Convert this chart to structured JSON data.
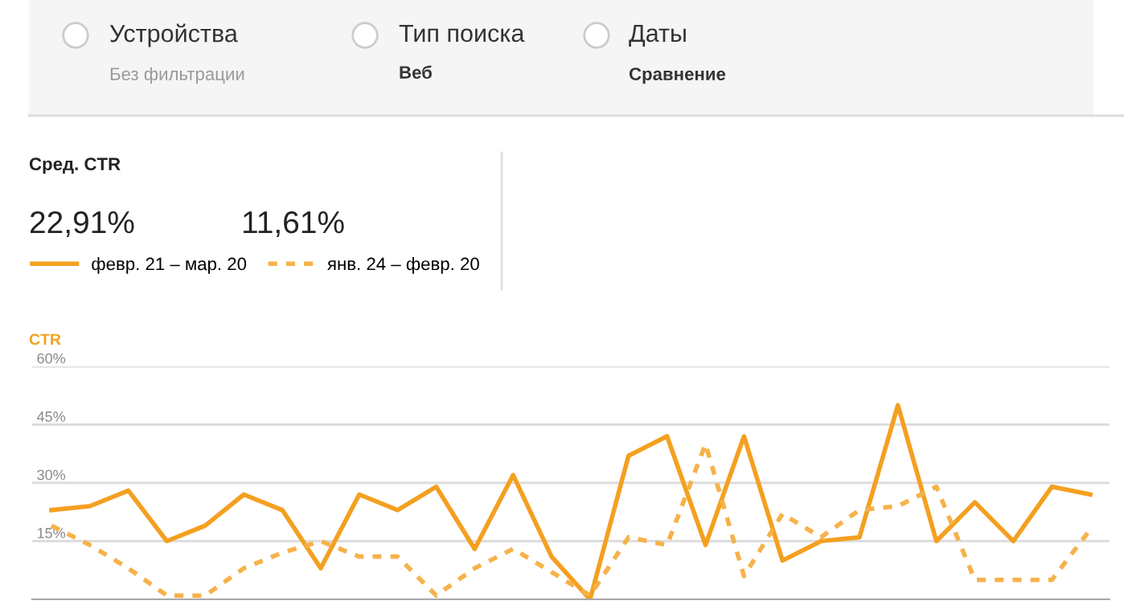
{
  "chart_data": {
    "type": "line",
    "ylabel": "CTR",
    "annotations": [
      "Устройства",
      "Без фильтрации",
      "Тип поиска",
      "Веб",
      "Даты",
      "Сравнение",
      "Сред. CTR",
      "22,91%",
      "11,61%"
    ],
    "categories": [
      null,
      null,
      null,
      null,
      null,
      null,
      null,
      null,
      null,
      null,
      null,
      null,
      null,
      null,
      null,
      null,
      null,
      null,
      null,
      null,
      null,
      null,
      null,
      null,
      null,
      null,
      null,
      null
    ],
    "series": [
      {
        "name": "февр. 21 – мар. 20",
        "color": "#f4a020",
        "line_style": "solid",
        "values": [
          23,
          24,
          28,
          15,
          19,
          27,
          23,
          8,
          27,
          23,
          29,
          13,
          32,
          11,
          0,
          37,
          42,
          14,
          42,
          10,
          15,
          16,
          50,
          15,
          25,
          15,
          29,
          27
        ]
      },
      {
        "name": "янв. 24 – февр. 20",
        "color": "#f6b24a",
        "line_style": "dashed",
        "values": [
          19,
          14,
          8,
          1,
          1,
          8,
          12,
          15,
          11,
          11,
          1,
          8,
          13,
          7,
          1,
          16,
          14,
          40,
          6,
          22,
          16,
          23,
          24,
          29,
          5,
          5,
          5,
          18
        ]
      }
    ],
    "ylim": [
      0,
      60
    ],
    "yticks": [
      {
        "value": 0,
        "label": null
      },
      {
        "value": 15,
        "label": "15%"
      },
      {
        "value": 30,
        "label": "30%"
      },
      {
        "value": 45,
        "label": "45%"
      },
      {
        "value": 60,
        "label": "60%"
      }
    ],
    "grid": "y",
    "legend": "top left",
    "marker": "none"
  }
}
